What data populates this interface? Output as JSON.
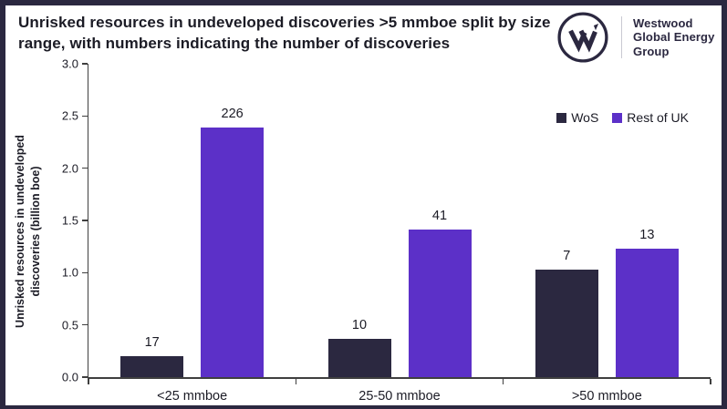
{
  "header": {
    "title": "Unrisked resources in undeveloped discoveries >5 mmboe split by size range, with numbers indicating the number of discoveries",
    "logo": {
      "monogram": "W",
      "name_lines": [
        "Westwood",
        "Global Energy",
        "Group"
      ]
    }
  },
  "chart_data": {
    "type": "bar",
    "title": "Unrisked resources in undeveloped discoveries >5 mmboe split by size range, with numbers indicating the number of discoveries",
    "categories": [
      "<25 mmboe",
      "25-50 mmboe",
      ">50 mmboe"
    ],
    "series": [
      {
        "name": "WoS",
        "color": "#2b2840",
        "values": [
          0.2,
          0.37,
          1.03
        ],
        "discovery_counts": [
          17,
          10,
          7
        ]
      },
      {
        "name": "Rest of UK",
        "color": "#5c30c8",
        "values": [
          2.39,
          1.41,
          1.23
        ],
        "discovery_counts": [
          226,
          41,
          13
        ]
      }
    ],
    "xlabel": "",
    "ylabel": "Unrisked resources in undeveloped discoveries (billion boe)",
    "ylabel_lines": [
      "Unrisked resources in undeveloped",
      "discoveries (billion boe)"
    ],
    "ylim": [
      0,
      3
    ],
    "yticks": [
      "0.0",
      "0.5",
      "1.0",
      "1.5",
      "2.0",
      "2.5",
      "3.0"
    ],
    "grid": false,
    "legend_position": "top-right",
    "value_labels_meaning": "number of discoveries"
  },
  "colors": {
    "frame": "#2b2840",
    "brand_navy": "#2b2840",
    "accent_purple": "#5c30c8",
    "axis": "#3f3f3f",
    "text": "#1b1b25",
    "background": "#ffffff"
  }
}
